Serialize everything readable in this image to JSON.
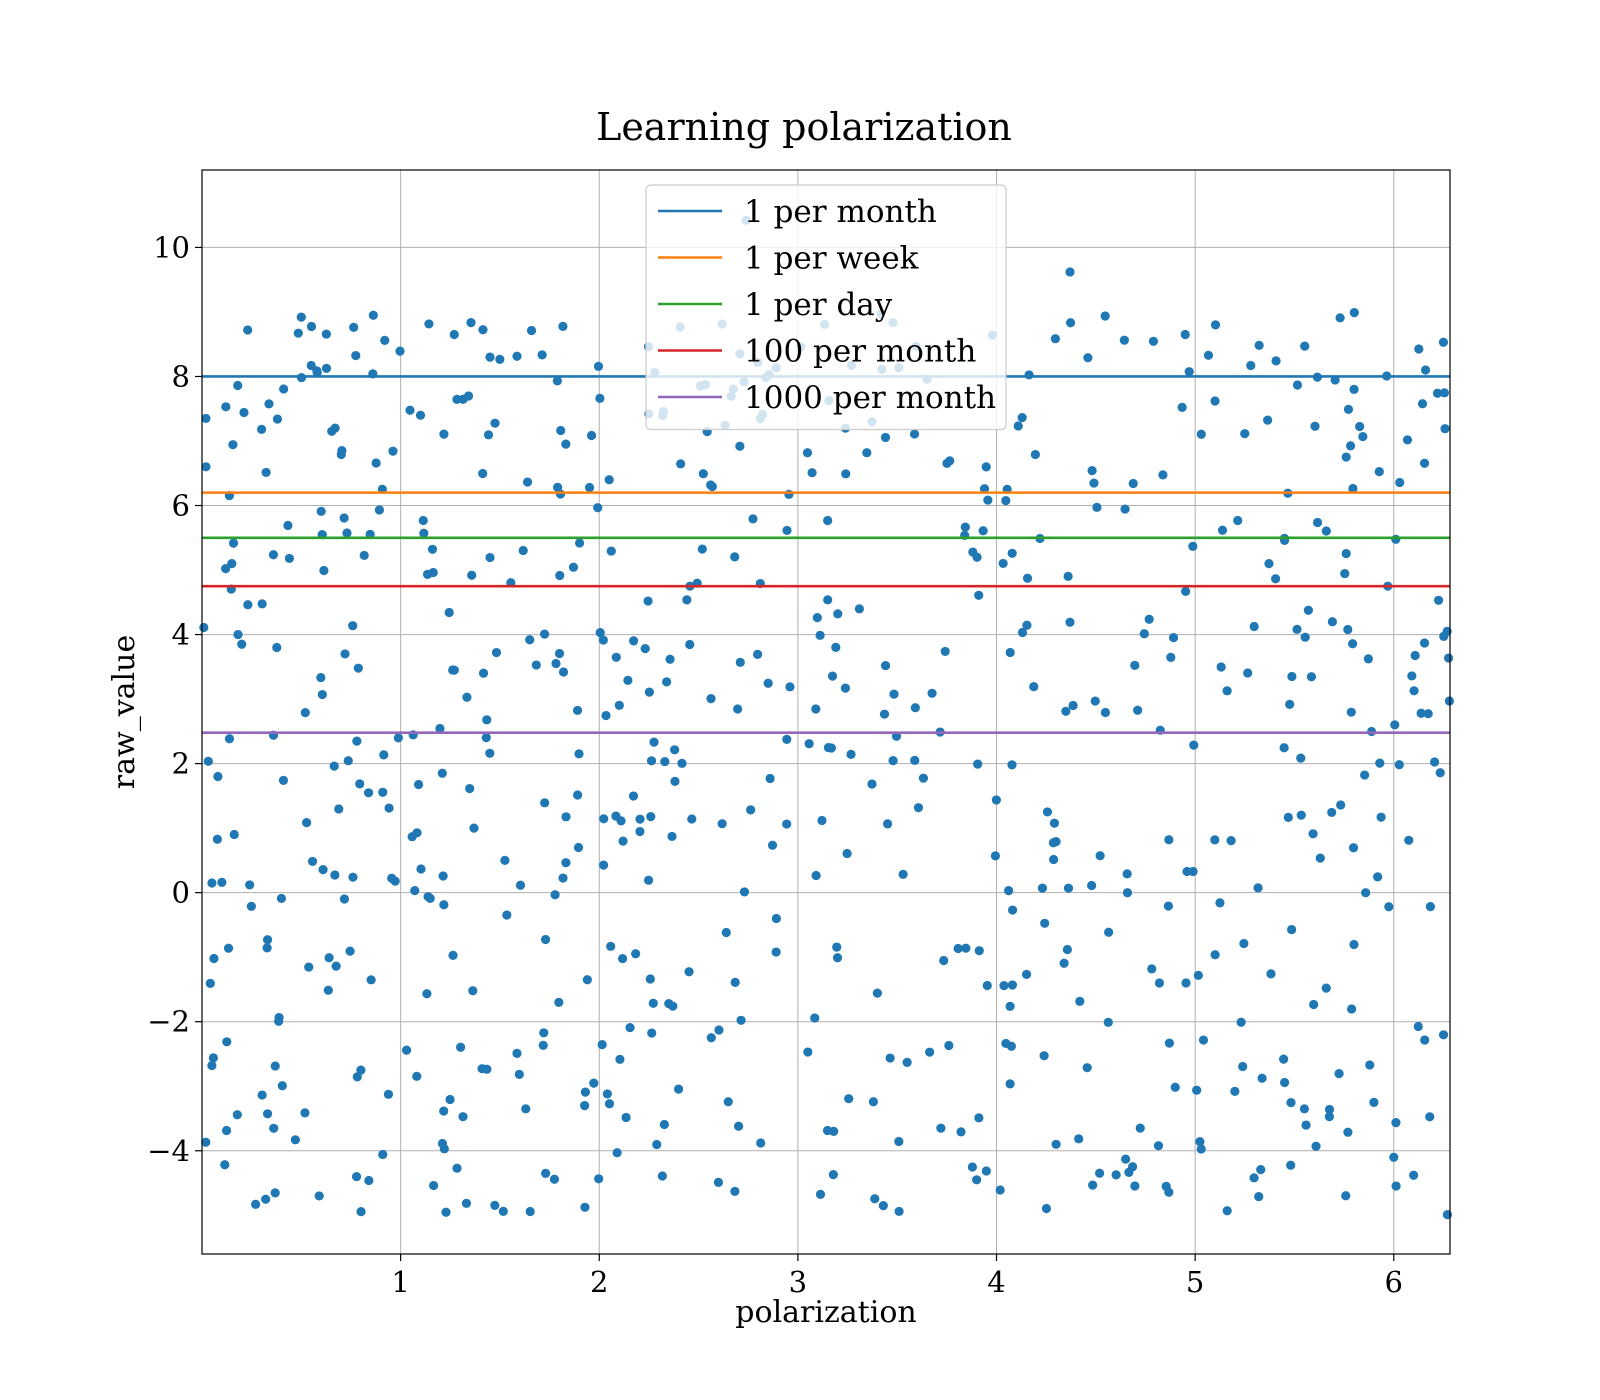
{
  "chart_data": {
    "type": "scatter",
    "title": "Learning polarization",
    "xlabel": "polarization",
    "ylabel": "raw_value",
    "xlim": [
      0,
      6.283
    ],
    "ylim": [
      -5.6,
      11.2
    ],
    "xticks": [
      1,
      2,
      3,
      4,
      5,
      6
    ],
    "xtick_labels": [
      "1",
      "2",
      "3",
      "4",
      "5",
      "6"
    ],
    "yticks": [
      -4,
      -2,
      0,
      2,
      4,
      6,
      8,
      10
    ],
    "ytick_labels": [
      "−4",
      "−2",
      "0",
      "2",
      "4",
      "6",
      "8",
      "10"
    ],
    "grid": true,
    "legend_position": "upper center",
    "point_color": "#1f77b4",
    "point_count": 700,
    "points_sample": [
      [
        0.02,
        7.35
      ],
      [
        0.02,
        6.6
      ],
      [
        0.05,
        0.15
      ],
      [
        0.06,
        -1.02
      ],
      [
        0.08,
        1.8
      ],
      [
        0.1,
        0.16
      ],
      [
        0.12,
        7.53
      ],
      [
        0.15,
        5.1
      ],
      [
        0.18,
        7.86
      ],
      [
        0.2,
        3.85
      ],
      [
        0.23,
        8.72
      ],
      [
        0.24,
        0.12
      ],
      [
        0.27,
        -4.83
      ],
      [
        0.3,
        7.18
      ],
      [
        0.33,
        -0.73
      ],
      [
        0.36,
        2.44
      ],
      [
        0.38,
        7.34
      ],
      [
        0.41,
        1.74
      ],
      [
        0.44,
        5.18
      ],
      [
        0.47,
        -3.83
      ],
      [
        0.5,
        8.92
      ],
      [
        0.52,
        2.79
      ],
      [
        0.55,
        8.17
      ],
      [
        0.59,
        -4.7
      ],
      [
        0.6,
        5.91
      ],
      [
        0.67,
        7.2
      ],
      [
        0.72,
        3.7
      ],
      [
        0.76,
        0.24
      ],
      [
        0.8,
        -2.75
      ],
      [
        0.84,
        -4.46
      ],
      [
        0.86,
        8.04
      ],
      [
        0.92,
        8.56
      ],
      [
        1.03,
        -2.44
      ],
      [
        1.1,
        7.4
      ],
      [
        1.22,
        -3.97
      ],
      [
        1.27,
        8.65
      ],
      [
        1.45,
        8.3
      ],
      [
        1.63,
        -3.35
      ],
      [
        1.73,
        -4.35
      ],
      [
        1.82,
        3.42
      ],
      [
        1.94,
        -1.35
      ],
      [
        2.05,
        6.4
      ],
      [
        2.09,
        -4.03
      ],
      [
        2.25,
        7.42
      ],
      [
        2.35,
        -1.72
      ],
      [
        2.6,
        -4.49
      ],
      [
        2.71,
        3.57
      ],
      [
        2.74,
        10.42
      ],
      [
        2.86,
        1.77
      ],
      [
        2.96,
        3.19
      ],
      [
        3.05,
        -2.47
      ],
      [
        3.18,
        -3.7
      ],
      [
        3.27,
        8.17
      ],
      [
        3.38,
        -3.24
      ],
      [
        3.43,
        -4.85
      ],
      [
        3.55,
        -2.63
      ],
      [
        3.72,
        -3.65
      ],
      [
        3.9,
        -4.45
      ],
      [
        3.98,
        8.64
      ],
      [
        4.08,
        -1.43
      ],
      [
        4.3,
        -3.9
      ],
      [
        4.37,
        9.62
      ],
      [
        4.46,
        8.29
      ],
      [
        4.65,
        -4.13
      ],
      [
        4.82,
        -1.4
      ],
      [
        4.95,
        8.65
      ],
      [
        5.1,
        7.62
      ],
      [
        5.2,
        -3.08
      ],
      [
        5.28,
        8.17
      ],
      [
        5.32,
        -4.71
      ],
      [
        5.45,
        5.46
      ],
      [
        5.55,
        -3.35
      ],
      [
        5.66,
        -1.48
      ],
      [
        5.8,
        7.8
      ],
      [
        5.9,
        -3.25
      ],
      [
        5.97,
        4.75
      ],
      [
        6.0,
        -4.1
      ],
      [
        6.1,
        -4.38
      ],
      [
        6.16,
        8.1
      ],
      [
        6.22,
        7.74
      ],
      [
        6.25,
        8.53
      ],
      [
        6.28,
        2.97
      ]
    ],
    "series": [
      {
        "name": "1 per month",
        "y": 8.0,
        "color": "#1f77b4"
      },
      {
        "name": "1 per week",
        "y": 6.2,
        "color": "#ff7f0e"
      },
      {
        "name": "1 per day",
        "y": 5.5,
        "color": "#2ca02c"
      },
      {
        "name": "100 per month",
        "y": 4.75,
        "color": "#d62728"
      },
      {
        "name": "1000 per month",
        "y": 2.48,
        "color": "#9467bd"
      }
    ]
  }
}
